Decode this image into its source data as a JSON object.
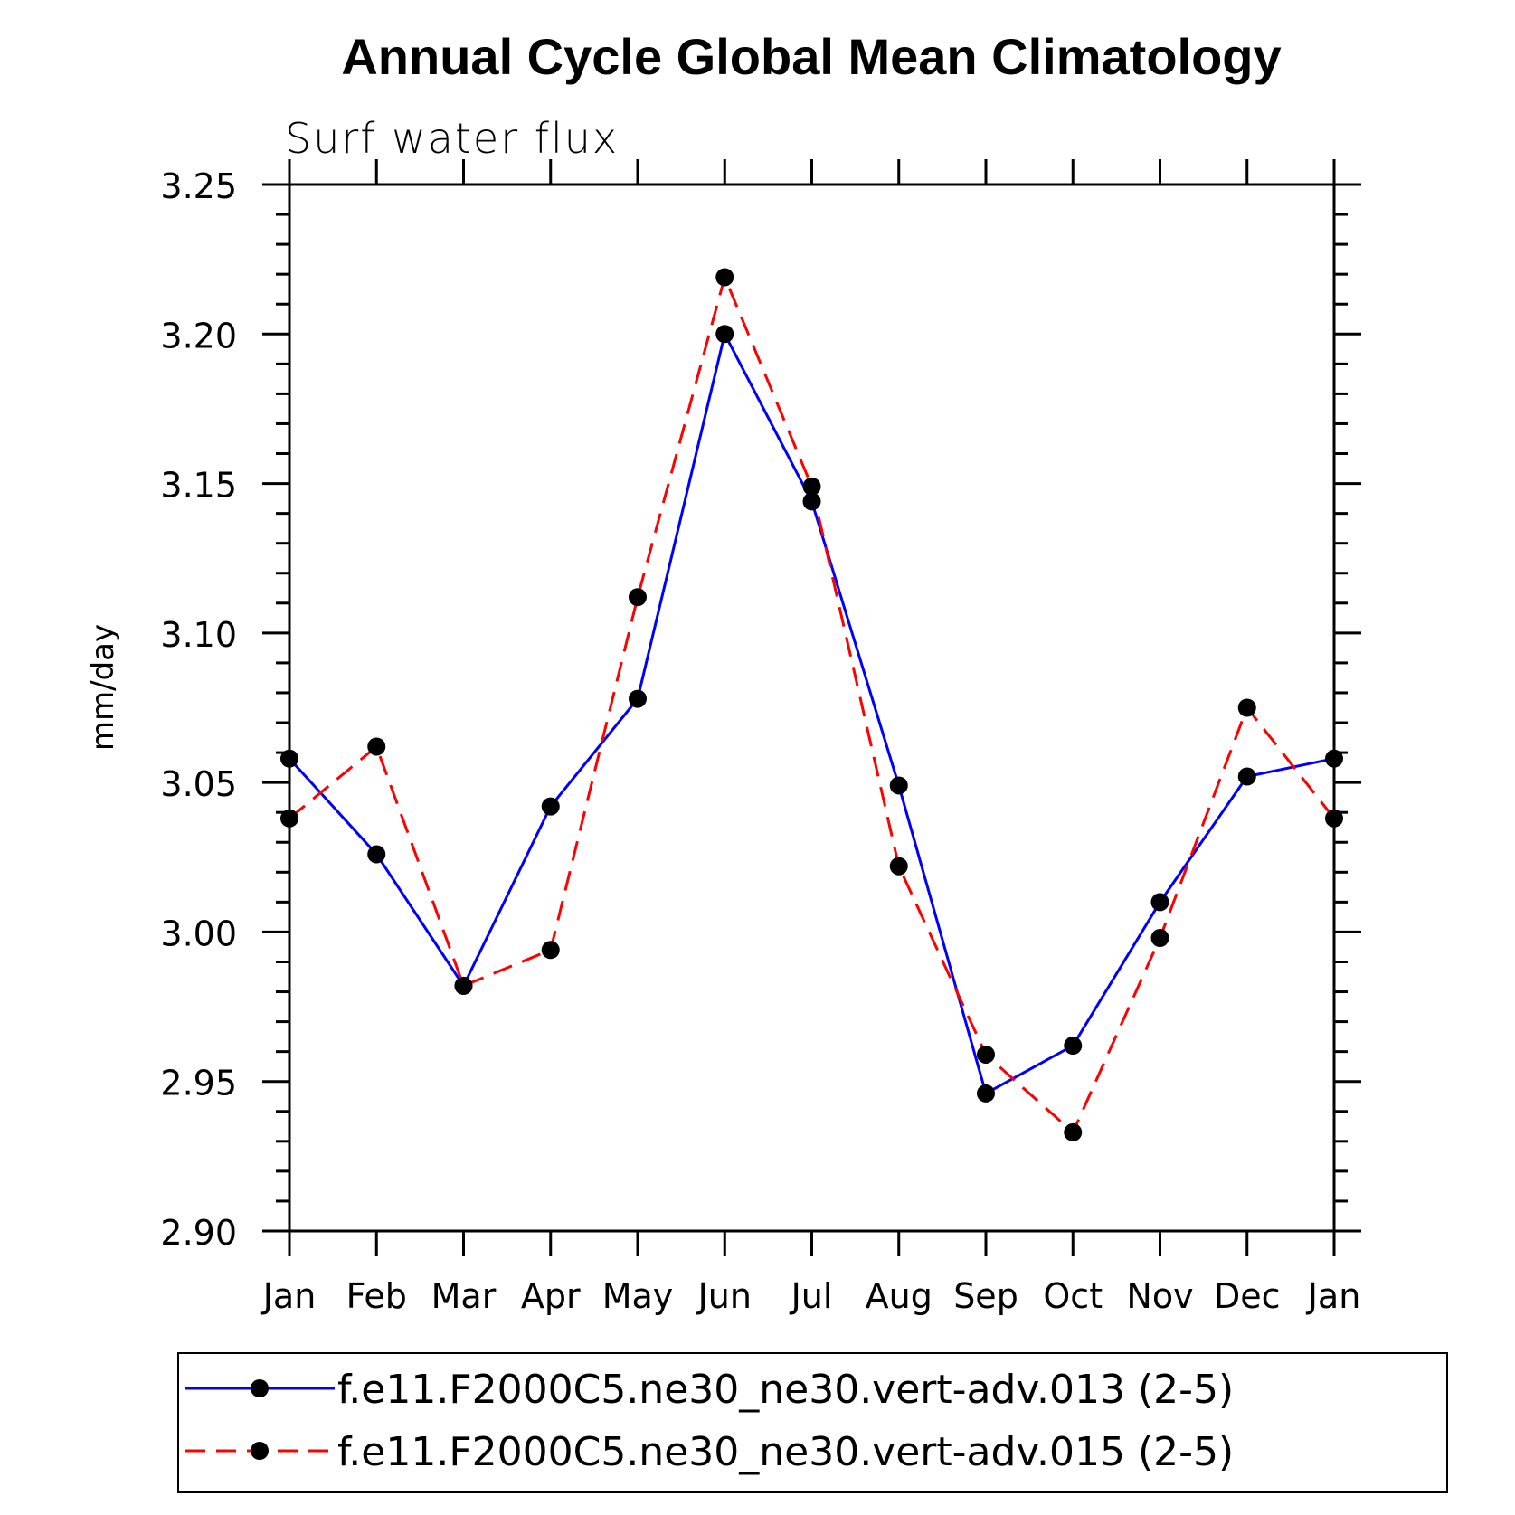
{
  "chart_data": {
    "type": "line",
    "title": "Annual Cycle Global Mean Climatology",
    "subtitle": "Surf water flux",
    "xlabel": "",
    "ylabel": "mm/day",
    "categories": [
      "Jan",
      "Feb",
      "Mar",
      "Apr",
      "May",
      "Jun",
      "Jul",
      "Aug",
      "Sep",
      "Oct",
      "Nov",
      "Dec",
      "Jan"
    ],
    "ylim": [
      2.9,
      3.25
    ],
    "yticks": [
      "2.90",
      "2.95",
      "3.00",
      "3.05",
      "3.10",
      "3.15",
      "3.20",
      "3.25"
    ],
    "series": [
      {
        "name": "f.e11.F2000C5.ne30_ne30.vert-adv.013 (2-5)",
        "color": "#0000ff",
        "dash": "solid",
        "marker": "filled-circle",
        "values": [
          3.058,
          3.026,
          2.982,
          3.042,
          3.078,
          3.2,
          3.144,
          3.049,
          2.946,
          2.962,
          3.01,
          3.052,
          3.058
        ]
      },
      {
        "name": "f.e11.F2000C5.ne30_ne30.vert-adv.015 (2-5)",
        "color": "#ff0000",
        "dash": "dashed",
        "marker": "filled-circle",
        "values": [
          3.038,
          3.062,
          2.982,
          2.994,
          3.112,
          3.219,
          3.149,
          3.022,
          2.959,
          2.933,
          2.998,
          3.075,
          3.038
        ]
      }
    ],
    "grid": false,
    "legend": "bottom"
  }
}
